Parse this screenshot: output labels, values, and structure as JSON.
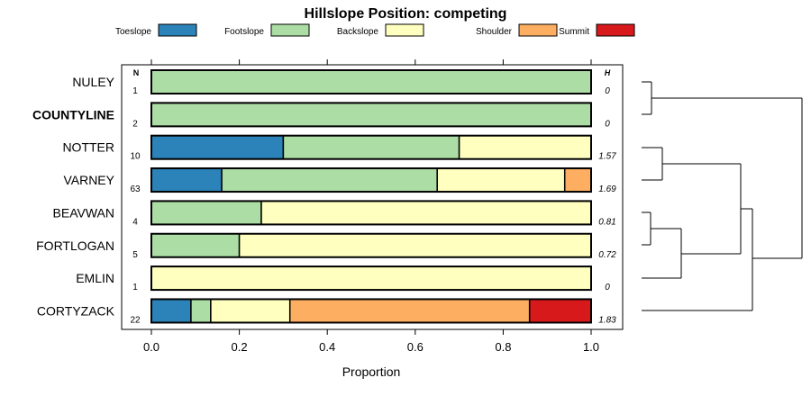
{
  "chart_data": {
    "type": "bar",
    "stacked": true,
    "orientation": "horizontal",
    "title": "Hillslope Position: competing",
    "xlabel": "Proportion",
    "ylabel": "",
    "xlim": [
      0,
      1
    ],
    "x_ticks": [
      "0.0",
      "0.2",
      "0.4",
      "0.6",
      "0.8",
      "1.0"
    ],
    "count_header": "N",
    "entropy_header": "H",
    "legend_position": "top",
    "series": [
      {
        "name": "Toeslope",
        "color": "#2b83ba"
      },
      {
        "name": "Footslope",
        "color": "#abdda4"
      },
      {
        "name": "Backslope",
        "color": "#ffffbf"
      },
      {
        "name": "Shoulder",
        "color": "#fdae61"
      },
      {
        "name": "Summit",
        "color": "#d7191c"
      }
    ],
    "rows": [
      {
        "label": "NULEY",
        "bold": false,
        "n": "1",
        "h": "0",
        "values": [
          0,
          1.0,
          0,
          0,
          0
        ]
      },
      {
        "label": "COUNTYLINE",
        "bold": true,
        "n": "2",
        "h": "0",
        "values": [
          0,
          1.0,
          0,
          0,
          0
        ]
      },
      {
        "label": "NOTTER",
        "bold": false,
        "n": "10",
        "h": "1.57",
        "values": [
          0.3,
          0.4,
          0.3,
          0,
          0
        ]
      },
      {
        "label": "VARNEY",
        "bold": false,
        "n": "63",
        "h": "1.69",
        "values": [
          0.16,
          0.49,
          0.29,
          0.06,
          0
        ]
      },
      {
        "label": "BEAVWAN",
        "bold": false,
        "n": "4",
        "h": "0.81",
        "values": [
          0,
          0.25,
          0.75,
          0,
          0
        ]
      },
      {
        "label": "FORTLOGAN",
        "bold": false,
        "n": "5",
        "h": "0.72",
        "values": [
          0,
          0.2,
          0.8,
          0,
          0
        ]
      },
      {
        "label": "EMLIN",
        "bold": false,
        "n": "1",
        "h": "0",
        "values": [
          0,
          0,
          1.0,
          0,
          0
        ]
      },
      {
        "label": "CORTYZACK",
        "bold": false,
        "n": "22",
        "h": "1.83",
        "values": [
          0.09,
          0.045,
          0.18,
          0.545,
          0.14
        ]
      }
    ]
  }
}
